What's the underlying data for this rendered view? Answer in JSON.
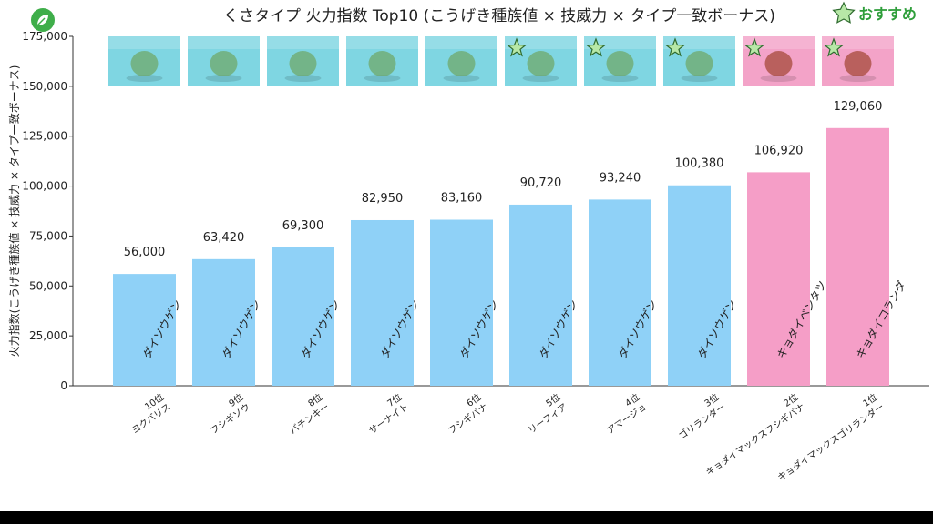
{
  "title": "くさタイプ 火力指数 Top10 (こうげき種族値 × 技威力 × タイプ一致ボーナス)",
  "legend": {
    "star_label": "おすすめ",
    "star_color": "#2e9e3a"
  },
  "colors": {
    "bar_normal": "#8fd1f7",
    "bar_gmax": "#f59ec7",
    "thumb_normal": "#7fd6e2",
    "thumb_gmax": "#f3a3c8",
    "star_fill": "#b7e8a7"
  },
  "chart_data": {
    "type": "bar",
    "title": "くさタイプ 火力指数 Top10 (こうげき種族値 × 技威力 × タイプ一致ボーナス)",
    "ylabel": "火力指数(こうげき種族値 × 技威力 × タイプ一致ボーナス)",
    "xlabel": "",
    "ylim": [
      0,
      175000
    ],
    "yticks": [
      "0",
      "25,000",
      "50,000",
      "75,000",
      "100,000",
      "125,000",
      "150,000",
      "175,000"
    ],
    "grid": false,
    "categories": [
      {
        "rank": "10位",
        "name": "ヨクバリス",
        "move": "ダイソウゲン",
        "value": 56000,
        "label": "56,000",
        "gmax": false,
        "recommended": false
      },
      {
        "rank": "9位",
        "name": "フシギソウ",
        "move": "ダイソウゲン",
        "value": 63420,
        "label": "63,420",
        "gmax": false,
        "recommended": false
      },
      {
        "rank": "8位",
        "name": "バチンキー",
        "move": "ダイソウゲン",
        "value": 69300,
        "label": "69,300",
        "gmax": false,
        "recommended": false
      },
      {
        "rank": "7位",
        "name": "サーナイト",
        "move": "ダイソウゲン",
        "value": 82950,
        "label": "82,950",
        "gmax": false,
        "recommended": false
      },
      {
        "rank": "6位",
        "name": "フシギバナ",
        "move": "ダイソウゲン",
        "value": 83160,
        "label": "83,160",
        "gmax": false,
        "recommended": false
      },
      {
        "rank": "5位",
        "name": "リーフィア",
        "move": "ダイソウゲン",
        "value": 90720,
        "label": "90,720",
        "gmax": false,
        "recommended": true
      },
      {
        "rank": "4位",
        "name": "アマージョ",
        "move": "ダイソウゲン",
        "value": 93240,
        "label": "93,240",
        "gmax": false,
        "recommended": true
      },
      {
        "rank": "3位",
        "name": "ゴリランダー",
        "move": "ダイソウゲン",
        "value": 100380,
        "label": "100,380",
        "gmax": false,
        "recommended": true
      },
      {
        "rank": "2位",
        "name": "キョダイマックスフシギバナ",
        "move": "キョダイベンタツ",
        "value": 106920,
        "label": "106,920",
        "gmax": true,
        "recommended": true
      },
      {
        "rank": "1位",
        "name": "キョダイマックスゴリランダー",
        "move": "キョダイコランダ",
        "value": 129060,
        "label": "129,060",
        "gmax": true,
        "recommended": true
      }
    ]
  }
}
